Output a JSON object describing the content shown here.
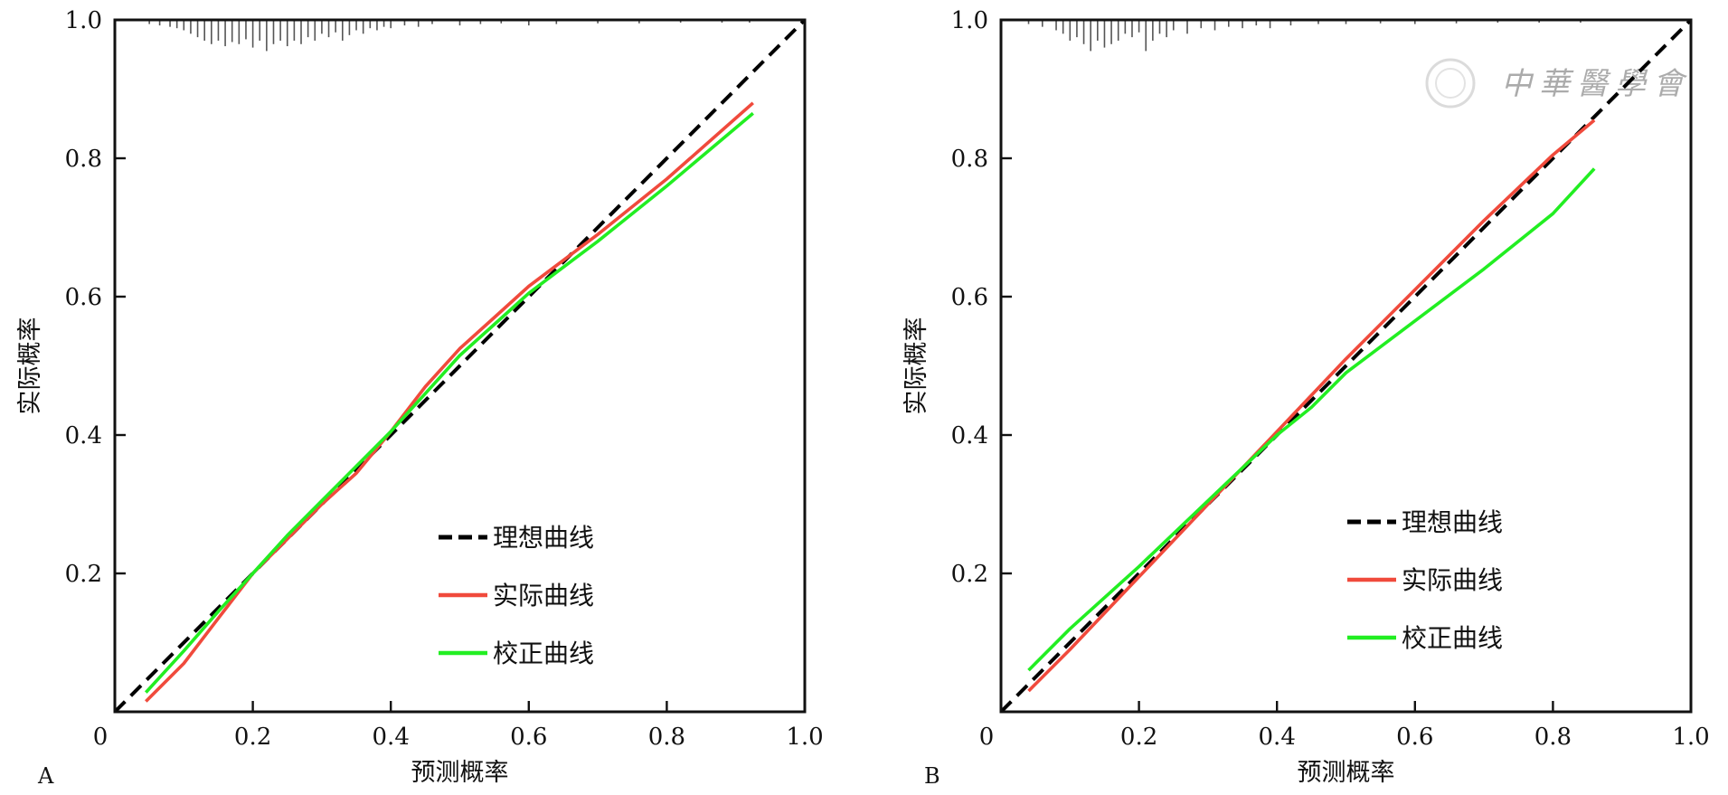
{
  "figure": {
    "watermark_text": "中華醫學會"
  },
  "chart_data": [
    {
      "type": "line",
      "panel_label": "A",
      "xlabel": "预测概率",
      "ylabel": "实际概率",
      "xlim": [
        0,
        1.0
      ],
      "ylim": [
        0,
        1.0
      ],
      "x_ticks": [
        0,
        0.2,
        0.4,
        0.6,
        0.8,
        1.0
      ],
      "x_tick_labels": [
        "0",
        "0.2",
        "0.4",
        "0.6",
        "0.8",
        "1.0"
      ],
      "y_ticks": [
        0.2,
        0.4,
        0.6,
        0.8,
        1.0
      ],
      "y_tick_labels": [
        "0.2",
        "0.4",
        "0.6",
        "0.8",
        "1.0"
      ],
      "grid": false,
      "legend_position": "bottom-right",
      "series": [
        {
          "name": "理想曲线",
          "color": "#000000",
          "style": "dashed",
          "points": [
            [
              0.0,
              0.0
            ],
            [
              1.0,
              1.0
            ]
          ]
        },
        {
          "name": "实际曲线",
          "color": "#f04a3c",
          "style": "solid",
          "points": [
            [
              0.045,
              0.015
            ],
            [
              0.1,
              0.07
            ],
            [
              0.15,
              0.135
            ],
            [
              0.2,
              0.2
            ],
            [
              0.25,
              0.25
            ],
            [
              0.3,
              0.3
            ],
            [
              0.35,
              0.345
            ],
            [
              0.4,
              0.405
            ],
            [
              0.45,
              0.47
            ],
            [
              0.5,
              0.525
            ],
            [
              0.55,
              0.57
            ],
            [
              0.6,
              0.615
            ],
            [
              0.7,
              0.69
            ],
            [
              0.8,
              0.77
            ],
            [
              0.925,
              0.88
            ]
          ]
        },
        {
          "name": "校正曲线",
          "color": "#22ee22",
          "style": "solid",
          "points": [
            [
              0.045,
              0.028
            ],
            [
              0.1,
              0.088
            ],
            [
              0.15,
              0.145
            ],
            [
              0.2,
              0.2
            ],
            [
              0.25,
              0.255
            ],
            [
              0.3,
              0.305
            ],
            [
              0.35,
              0.355
            ],
            [
              0.4,
              0.405
            ],
            [
              0.45,
              0.46
            ],
            [
              0.5,
              0.515
            ],
            [
              0.55,
              0.56
            ],
            [
              0.6,
              0.605
            ],
            [
              0.7,
              0.68
            ],
            [
              0.8,
              0.76
            ],
            [
              0.925,
              0.865
            ]
          ]
        }
      ],
      "rug": [
        {
          "x": 0.05,
          "len": 0.006
        },
        {
          "x": 0.065,
          "len": 0.008
        },
        {
          "x": 0.08,
          "len": 0.01
        },
        {
          "x": 0.09,
          "len": 0.012
        },
        {
          "x": 0.1,
          "len": 0.015
        },
        {
          "x": 0.11,
          "len": 0.02
        },
        {
          "x": 0.12,
          "len": 0.025
        },
        {
          "x": 0.13,
          "len": 0.03
        },
        {
          "x": 0.14,
          "len": 0.035
        },
        {
          "x": 0.15,
          "len": 0.03
        },
        {
          "x": 0.16,
          "len": 0.038
        },
        {
          "x": 0.17,
          "len": 0.032
        },
        {
          "x": 0.18,
          "len": 0.035
        },
        {
          "x": 0.19,
          "len": 0.028
        },
        {
          "x": 0.2,
          "len": 0.04
        },
        {
          "x": 0.21,
          "len": 0.03
        },
        {
          "x": 0.22,
          "len": 0.045
        },
        {
          "x": 0.23,
          "len": 0.035
        },
        {
          "x": 0.24,
          "len": 0.03
        },
        {
          "x": 0.25,
          "len": 0.038
        },
        {
          "x": 0.26,
          "len": 0.03
        },
        {
          "x": 0.27,
          "len": 0.035
        },
        {
          "x": 0.28,
          "len": 0.025
        },
        {
          "x": 0.29,
          "len": 0.03
        },
        {
          "x": 0.3,
          "len": 0.02
        },
        {
          "x": 0.31,
          "len": 0.025
        },
        {
          "x": 0.32,
          "len": 0.018
        },
        {
          "x": 0.33,
          "len": 0.03
        },
        {
          "x": 0.34,
          "len": 0.022
        },
        {
          "x": 0.35,
          "len": 0.015
        },
        {
          "x": 0.36,
          "len": 0.02
        },
        {
          "x": 0.37,
          "len": 0.012
        },
        {
          "x": 0.38,
          "len": 0.015
        },
        {
          "x": 0.39,
          "len": 0.01
        },
        {
          "x": 0.4,
          "len": 0.012
        },
        {
          "x": 0.42,
          "len": 0.008
        },
        {
          "x": 0.44,
          "len": 0.01
        },
        {
          "x": 0.46,
          "len": 0.006
        },
        {
          "x": 0.5,
          "len": 0.008
        },
        {
          "x": 0.53,
          "len": 0.006
        },
        {
          "x": 0.56,
          "len": 0.005
        },
        {
          "x": 0.6,
          "len": 0.008
        },
        {
          "x": 0.64,
          "len": 0.006
        },
        {
          "x": 0.7,
          "len": 0.005
        },
        {
          "x": 0.76,
          "len": 0.005
        },
        {
          "x": 0.82,
          "len": 0.004
        },
        {
          "x": 0.88,
          "len": 0.004
        },
        {
          "x": 0.92,
          "len": 0.004
        }
      ]
    },
    {
      "type": "line",
      "panel_label": "B",
      "xlabel": "预测概率",
      "ylabel": "实际概率",
      "xlim": [
        0,
        1.0
      ],
      "ylim": [
        0,
        1.0
      ],
      "x_ticks": [
        0,
        0.2,
        0.4,
        0.6,
        0.8,
        1.0
      ],
      "x_tick_labels": [
        "0",
        "0.2",
        "0.4",
        "0.6",
        "0.8",
        "1.0"
      ],
      "y_ticks": [
        0.2,
        0.4,
        0.6,
        0.8,
        1.0
      ],
      "y_tick_labels": [
        "0.2",
        "0.4",
        "0.6",
        "0.8",
        "1.0"
      ],
      "grid": false,
      "legend_position": "bottom-right",
      "series": [
        {
          "name": "理想曲线",
          "color": "#000000",
          "style": "dashed",
          "points": [
            [
              0.0,
              0.0
            ],
            [
              1.0,
              1.0
            ]
          ]
        },
        {
          "name": "实际曲线",
          "color": "#f04a3c",
          "style": "solid",
          "points": [
            [
              0.04,
              0.03
            ],
            [
              0.1,
              0.09
            ],
            [
              0.2,
              0.195
            ],
            [
              0.3,
              0.3
            ],
            [
              0.4,
              0.405
            ],
            [
              0.5,
              0.51
            ],
            [
              0.6,
              0.61
            ],
            [
              0.7,
              0.71
            ],
            [
              0.8,
              0.805
            ],
            [
              0.86,
              0.855
            ]
          ]
        },
        {
          "name": "校正曲线",
          "color": "#22ee22",
          "style": "solid",
          "points": [
            [
              0.04,
              0.06
            ],
            [
              0.1,
              0.12
            ],
            [
              0.2,
              0.21
            ],
            [
              0.3,
              0.305
            ],
            [
              0.4,
              0.4
            ],
            [
              0.45,
              0.44
            ],
            [
              0.5,
              0.49
            ],
            [
              0.6,
              0.565
            ],
            [
              0.7,
              0.64
            ],
            [
              0.8,
              0.72
            ],
            [
              0.86,
              0.785
            ]
          ]
        }
      ],
      "rug": [
        {
          "x": 0.04,
          "len": 0.006
        },
        {
          "x": 0.06,
          "len": 0.01
        },
        {
          "x": 0.08,
          "len": 0.015
        },
        {
          "x": 0.09,
          "len": 0.02
        },
        {
          "x": 0.1,
          "len": 0.03
        },
        {
          "x": 0.11,
          "len": 0.025
        },
        {
          "x": 0.12,
          "len": 0.035
        },
        {
          "x": 0.13,
          "len": 0.045
        },
        {
          "x": 0.14,
          "len": 0.03
        },
        {
          "x": 0.15,
          "len": 0.04
        },
        {
          "x": 0.16,
          "len": 0.035
        },
        {
          "x": 0.17,
          "len": 0.03
        },
        {
          "x": 0.18,
          "len": 0.02
        },
        {
          "x": 0.19,
          "len": 0.025
        },
        {
          "x": 0.2,
          "len": 0.018
        },
        {
          "x": 0.21,
          "len": 0.045
        },
        {
          "x": 0.22,
          "len": 0.03
        },
        {
          "x": 0.23,
          "len": 0.02
        },
        {
          "x": 0.24,
          "len": 0.025
        },
        {
          "x": 0.25,
          "len": 0.015
        },
        {
          "x": 0.27,
          "len": 0.02
        },
        {
          "x": 0.29,
          "len": 0.012
        },
        {
          "x": 0.31,
          "len": 0.015
        },
        {
          "x": 0.33,
          "len": 0.01
        },
        {
          "x": 0.35,
          "len": 0.012
        },
        {
          "x": 0.37,
          "len": 0.008
        },
        {
          "x": 0.39,
          "len": 0.012
        },
        {
          "x": 0.42,
          "len": 0.008
        },
        {
          "x": 0.46,
          "len": 0.006
        },
        {
          "x": 0.5,
          "len": 0.006
        },
        {
          "x": 0.55,
          "len": 0.005
        },
        {
          "x": 0.6,
          "len": 0.006
        },
        {
          "x": 0.66,
          "len": 0.005
        },
        {
          "x": 0.72,
          "len": 0.004
        },
        {
          "x": 0.78,
          "len": 0.004
        },
        {
          "x": 0.84,
          "len": 0.004
        }
      ]
    }
  ]
}
